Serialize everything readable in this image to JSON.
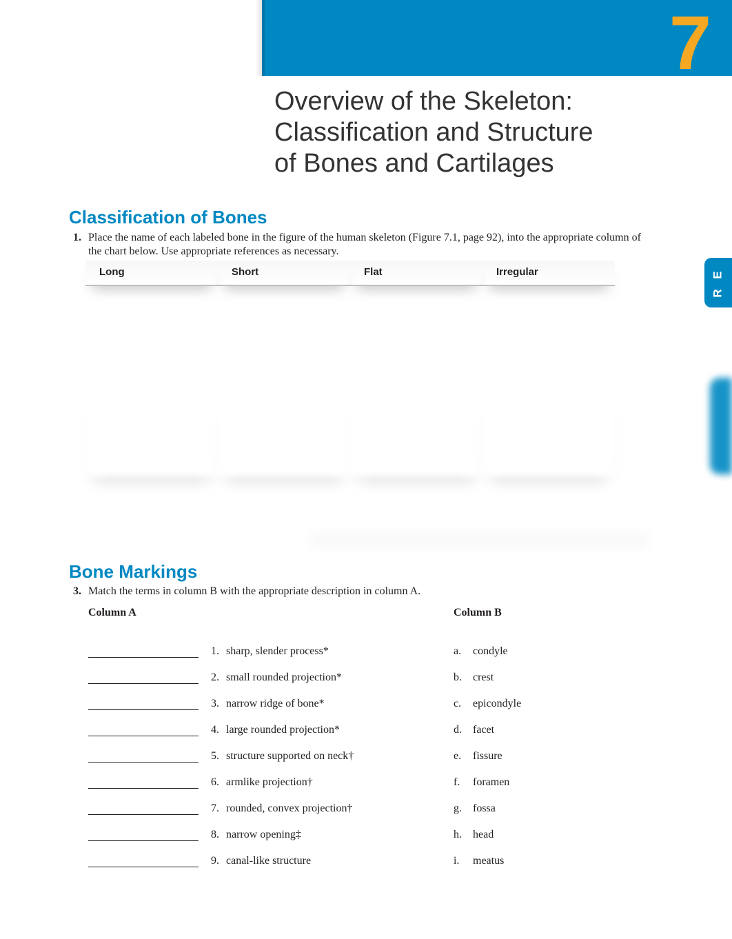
{
  "chapter_number": "7",
  "title_line1": "Overview of the Skeleton:",
  "title_line2": "Classification and Structure",
  "title_line3": "of Bones and Cartilages",
  "tab_label": "R E",
  "section1": {
    "heading": "Classification of Bones",
    "q_num": "1.",
    "instruction": "Place the name of each labeled bone in the figure of the human skeleton (Figure 7.1, page 92), into the appropriate column of the chart below. Use appropriate references as necessary.",
    "columns": [
      "Long",
      "Short",
      "Flat",
      "Irregular"
    ]
  },
  "section2": {
    "heading": "Bone Markings",
    "q_num": "3.",
    "instruction": "Match the terms in column B with the appropriate description in column A.",
    "colA_label": "Column A",
    "colB_label": "Column B",
    "items": [
      {
        "n": "1.",
        "desc": "sharp, slender process*",
        "letter": "a.",
        "term": "condyle"
      },
      {
        "n": "2.",
        "desc": "small rounded projection*",
        "letter": "b.",
        "term": "crest"
      },
      {
        "n": "3.",
        "desc": "narrow ridge of bone*",
        "letter": "c.",
        "term": "epicondyle"
      },
      {
        "n": "4.",
        "desc": "large rounded projection*",
        "letter": "d.",
        "term": "facet"
      },
      {
        "n": "5.",
        "desc": "structure supported on neck†",
        "letter": "e.",
        "term": "fissure"
      },
      {
        "n": "6.",
        "desc": "armlike projection†",
        "letter": "f.",
        "term": "foramen"
      },
      {
        "n": "7.",
        "desc": "rounded, convex projection†",
        "letter": "g.",
        "term": "fossa"
      },
      {
        "n": "8.",
        "desc": "narrow opening‡",
        "letter": "h.",
        "term": "head"
      },
      {
        "n": "9.",
        "desc": "canal-like structure",
        "letter": "i.",
        "term": "meatus"
      }
    ]
  },
  "colors": {
    "brand_blue": "#0088c2",
    "accent_orange": "#f7a823",
    "text": "#231f20",
    "rule": "#bfbfbf"
  },
  "typography": {
    "title_fontsize": 38,
    "section_fontsize": 26,
    "body_fontsize": 16,
    "chapter_num_fontsize": 110
  }
}
